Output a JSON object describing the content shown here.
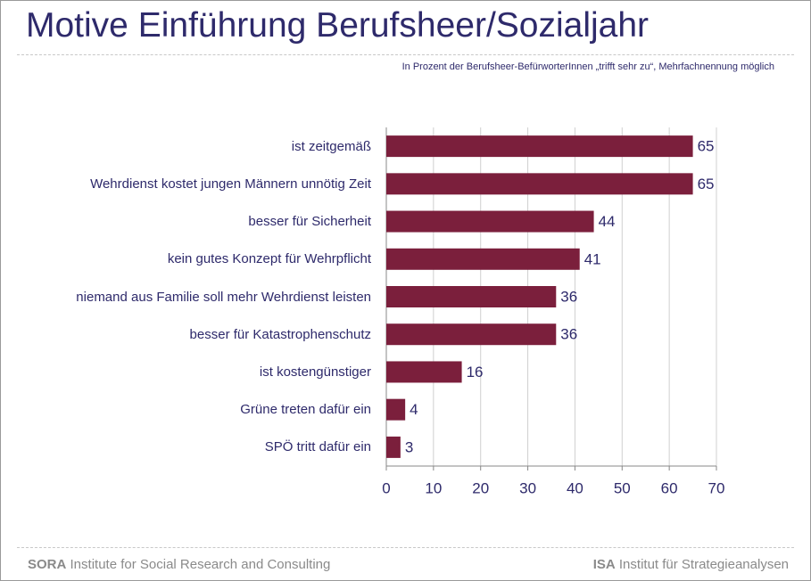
{
  "chart_data": {
    "type": "bar",
    "orientation": "horizontal",
    "title": "Motive Einführung Berufsheer/Sozialjahr",
    "subtitle": "In Prozent der Berufsheer-BefürworterInnen „trifft sehr zu“, Mehrfachnennung möglich",
    "categories": [
      "ist zeitgemäß",
      "Wehrdienst kostet jungen Männern unnötig Zeit",
      "besser für Sicherheit",
      "kein gutes Konzept für Wehrpflicht",
      "niemand aus Familie soll mehr Wehrdienst leisten",
      "besser für Katastrophenschutz",
      "ist kostengünstiger",
      "Grüne treten dafür ein",
      "SPÖ tritt dafür ein"
    ],
    "values": [
      65,
      65,
      44,
      41,
      36,
      36,
      16,
      4,
      3
    ],
    "color": "#7b1f3c",
    "xlim": [
      0,
      70
    ],
    "xticks": [
      0,
      10,
      20,
      30,
      40,
      50,
      60,
      70
    ],
    "grid": true
  },
  "footer": {
    "left": {
      "org": "SORA",
      "name": "Institute for Social Research and Consulting"
    },
    "right": {
      "org": "ISA",
      "name": "Institut für Strategieanalysen"
    }
  }
}
